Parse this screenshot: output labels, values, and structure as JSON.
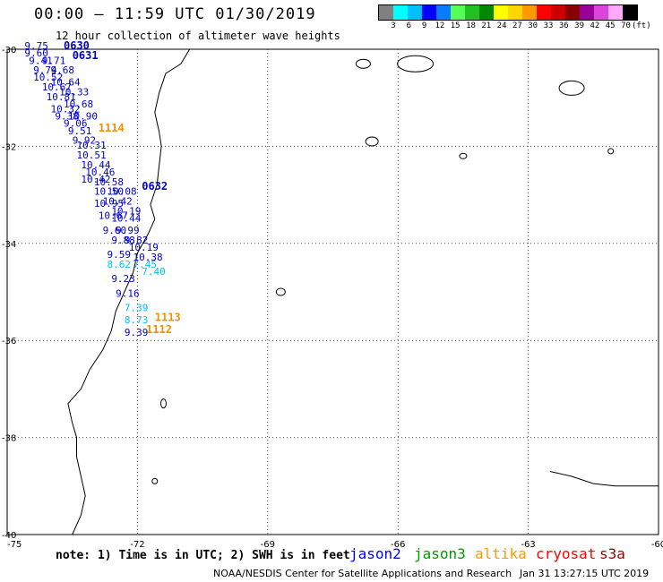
{
  "title": "00:00 – 11:59 UTC 01/30/2019",
  "subtitle": "12 hour collection of altimeter wave heights",
  "scale": {
    "colors": [
      "#808080",
      "#00ffff",
      "#00bfff",
      "#0000ff",
      "#0a7cff",
      "#55ff55",
      "#22c122",
      "#008800",
      "#ffff00",
      "#ffd700",
      "#ff9900",
      "#ff0000",
      "#cc0000",
      "#880000",
      "#990099",
      "#dd44dd",
      "#ffaaff",
      "#000000"
    ],
    "labels": [
      "3",
      "6",
      "9",
      "12",
      "15",
      "18",
      "21",
      "24",
      "27",
      "30",
      "33",
      "36",
      "39",
      "42",
      "45",
      "70",
      "(ft)"
    ]
  },
  "axes": {
    "x_ticks": [
      "-75",
      "-72",
      "-69",
      "-66",
      "-63",
      "-60"
    ],
    "y_ticks": [
      "-30",
      "-32",
      "-34",
      "-36",
      "-38",
      "-40"
    ]
  },
  "pass_times": [
    {
      "label": "0630",
      "color": "#0000cc"
    },
    {
      "label": "0631",
      "color": "#0000cc"
    },
    {
      "label": "0632",
      "color": "#0000cc"
    },
    {
      "label": "1114",
      "color": "#f09000"
    },
    {
      "label": "1113",
      "color": "#f09000"
    },
    {
      "label": "1112",
      "color": "#f09000"
    }
  ],
  "chart_data": {
    "type": "scatter",
    "title": "00:00 – 11:59 UTC 01/30/2019",
    "subtitle": "12 hour collection of altimeter wave heights",
    "x_range": [
      -75,
      -60
    ],
    "y_range": [
      -40,
      -30
    ],
    "series": [
      {
        "name": "jason2",
        "color": "#0000cc",
        "points": [
          {
            "lon": -74.6,
            "lat": -30.0,
            "v": "9.75"
          },
          {
            "lon": -74.6,
            "lat": -30.15,
            "v": "9.60"
          },
          {
            "lon": -74.5,
            "lat": -30.3,
            "v": "9.41"
          },
          {
            "lon": -74.2,
            "lat": -30.3,
            "v": "9.71"
          },
          {
            "lon": -74.4,
            "lat": -30.5,
            "v": "9.74"
          },
          {
            "lon": -74.0,
            "lat": -30.5,
            "v": "9.68"
          },
          {
            "lon": -74.4,
            "lat": -30.65,
            "v": "10.52"
          },
          {
            "lon": -74.0,
            "lat": -30.75,
            "v": "10.64"
          },
          {
            "lon": -74.2,
            "lat": -30.85,
            "v": "10.67"
          },
          {
            "lon": -73.8,
            "lat": -30.95,
            "v": "10.33"
          },
          {
            "lon": -74.1,
            "lat": -31.05,
            "v": "10.81"
          },
          {
            "lon": -73.7,
            "lat": -31.2,
            "v": "10.68"
          },
          {
            "lon": -74.0,
            "lat": -31.3,
            "v": "10.32"
          },
          {
            "lon": -73.9,
            "lat": -31.45,
            "v": "9.38"
          },
          {
            "lon": -73.6,
            "lat": -31.45,
            "v": "10.90"
          },
          {
            "lon": -73.7,
            "lat": -31.6,
            "v": "9.06"
          },
          {
            "lon": -73.6,
            "lat": -31.75,
            "v": "9.51"
          },
          {
            "lon": -73.5,
            "lat": -31.95,
            "v": "9.92"
          },
          {
            "lon": -73.4,
            "lat": -32.05,
            "v": "10.31"
          },
          {
            "lon": -73.4,
            "lat": -32.25,
            "v": "10.51"
          },
          {
            "lon": -73.3,
            "lat": -32.45,
            "v": "10.44"
          },
          {
            "lon": -73.2,
            "lat": -32.6,
            "v": "10.46"
          },
          {
            "lon": -73.3,
            "lat": -32.75,
            "v": "10.42"
          },
          {
            "lon": -73.0,
            "lat": -32.8,
            "v": "10.58"
          },
          {
            "lon": -73.0,
            "lat": -33.0,
            "v": "10.50"
          },
          {
            "lon": -72.7,
            "lat": -33.0,
            "v": "10.08"
          },
          {
            "lon": -72.8,
            "lat": -33.2,
            "v": "10.42"
          },
          {
            "lon": -73.0,
            "lat": -33.25,
            "v": "10.95"
          },
          {
            "lon": -72.6,
            "lat": -33.4,
            "v": "10.19"
          },
          {
            "lon": -72.9,
            "lat": -33.5,
            "v": "10.67"
          },
          {
            "lon": -72.6,
            "lat": -33.55,
            "v": "10.44"
          },
          {
            "lon": -72.8,
            "lat": -33.8,
            "v": "9.60"
          },
          {
            "lon": -72.5,
            "lat": -33.8,
            "v": "9.99"
          },
          {
            "lon": -72.6,
            "lat": -34.0,
            "v": "9.88"
          },
          {
            "lon": -72.3,
            "lat": -34.0,
            "v": "9.82"
          },
          {
            "lon": -72.2,
            "lat": -34.15,
            "v": "10.19"
          },
          {
            "lon": -72.7,
            "lat": -34.3,
            "v": "9.59"
          },
          {
            "lon": -72.1,
            "lat": -34.35,
            "v": "10.38"
          },
          {
            "lon": -72.6,
            "lat": -34.8,
            "v": "9.23"
          },
          {
            "lon": -72.5,
            "lat": -35.1,
            "v": "9.16"
          },
          {
            "lon": -72.3,
            "lat": -35.9,
            "v": "9.39"
          }
        ]
      },
      {
        "name": "jason3",
        "color": "#00bfff",
        "points": [
          {
            "lon": -72.7,
            "lat": -34.5,
            "v": "8.62"
          },
          {
            "lon": -72.1,
            "lat": -34.5,
            "v": "7.45"
          },
          {
            "lon": -71.9,
            "lat": -34.65,
            "v": "7.40"
          },
          {
            "lon": -72.3,
            "lat": -35.4,
            "v": "7.39"
          },
          {
            "lon": -72.3,
            "lat": -35.65,
            "v": "8.73"
          }
        ]
      }
    ],
    "passes": [
      {
        "lon": -73.7,
        "lat": -30.0,
        "label": "0630"
      },
      {
        "lon": -73.5,
        "lat": -30.2,
        "label": "0631"
      },
      {
        "lon": -71.9,
        "lat": -32.9,
        "label": "0632"
      },
      {
        "lon": -72.9,
        "lat": -31.7,
        "label": "1114"
      },
      {
        "lon": -71.6,
        "lat": -35.6,
        "label": "1113"
      },
      {
        "lon": -71.8,
        "lat": -35.85,
        "label": "1112"
      }
    ]
  },
  "note": "note: 1) Time is in UTC; 2) SWH is in feet",
  "legend": [
    {
      "name": "jason2",
      "color": "#0000ff"
    },
    {
      "name": "jason3",
      "color": "#009900"
    },
    {
      "name": "altika",
      "color": "#ff9900"
    },
    {
      "name": "cryosat",
      "color": "#ff0000"
    },
    {
      "name": "s3a",
      "color": "#990000"
    }
  ],
  "footer": "NOAA/NESDIS Center for Satellite Applications and Research",
  "footer_time": "Jan 31 13:27:15 UTC 2019"
}
